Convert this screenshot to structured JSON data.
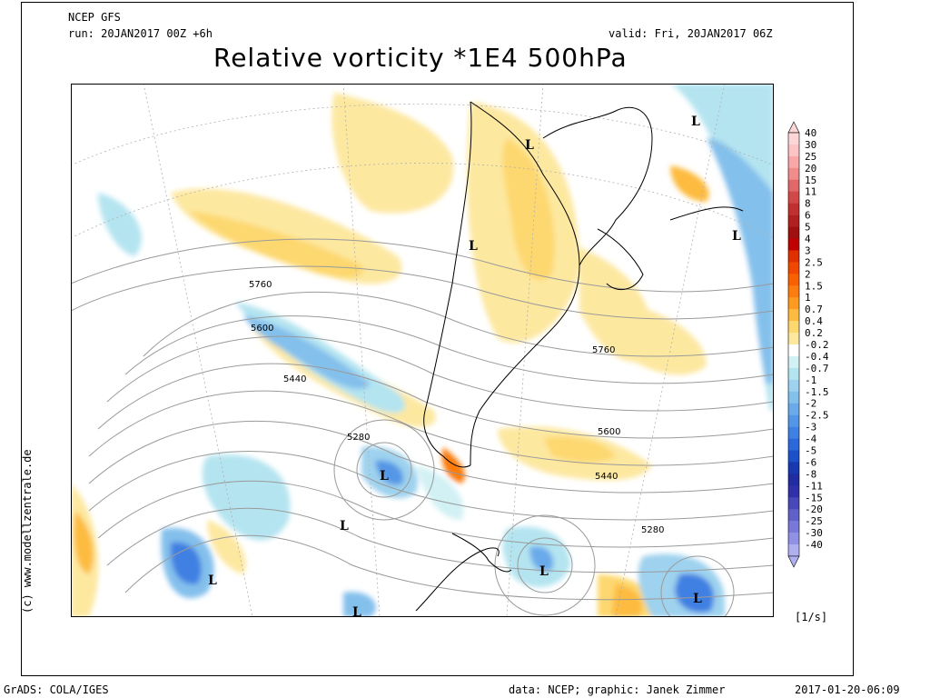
{
  "header": {
    "model": "NCEP GFS",
    "run": "run: 20JAN2017 00Z +6h",
    "valid": "valid: Fri, 20JAN2017 06Z",
    "title": "Relative vorticity *1E4 500hPa"
  },
  "map": {
    "lows": [
      "L",
      "L",
      "L",
      "L",
      "L",
      "L",
      "L",
      "L",
      "L",
      "L"
    ],
    "contour_labels": [
      "5760",
      "5600",
      "5440",
      "5280",
      "5760",
      "5600",
      "5440",
      "5280"
    ]
  },
  "colorbar": {
    "labels": [
      "40",
      "30",
      "25",
      "20",
      "15",
      "11",
      "8",
      "6",
      "5",
      "4",
      "3",
      "2.5",
      "2",
      "1.5",
      "1",
      "0.7",
      "0.4",
      "0.2",
      "-0.2",
      "-0.4",
      "-0.7",
      "-1",
      "-1.5",
      "-2",
      "-2.5",
      "-3",
      "-4",
      "-5",
      "-6",
      "-8",
      "-11",
      "-15",
      "-20",
      "-25",
      "-30",
      "-40"
    ],
    "colors": [
      "#fdd7d7",
      "#fcc4c4",
      "#f8a8a8",
      "#f08c8c",
      "#e06868",
      "#d04848",
      "#c03030",
      "#b02020",
      "#a01010",
      "#c00000",
      "#e03000",
      "#f04800",
      "#f86000",
      "#fc7c10",
      "#fd9a20",
      "#fdbb40",
      "#fdd870",
      "#fde8a0",
      "#ffffff",
      "#d2f1f4",
      "#b4e4f0",
      "#9ed2ee",
      "#84c0ec",
      "#6aaaea",
      "#5496e6",
      "#4080e2",
      "#2c68da",
      "#1c50c8",
      "#1838b0",
      "#202ca0",
      "#3030a8",
      "#4848b8",
      "#6060c8",
      "#7878d8",
      "#9090e4",
      "#b0b0f0"
    ],
    "unit": "[1/s]"
  },
  "footer": {
    "left": "GrADS: COLA/IGES",
    "center": "data: NCEP; graphic: Janek Zimmer",
    "right": "2017-01-20-06:09",
    "credit": "(c) www.modellzentrale.de"
  }
}
